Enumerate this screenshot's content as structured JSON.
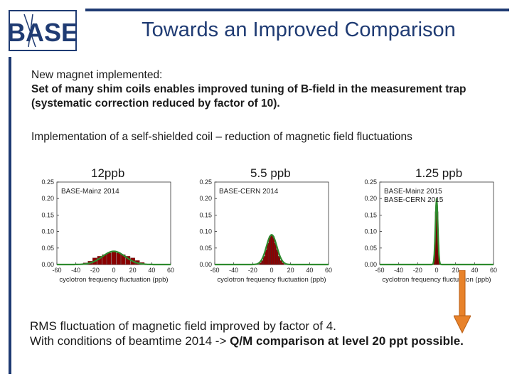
{
  "logo": {
    "text": "BASE"
  },
  "title": "Towards an Improved Comparison",
  "intro": {
    "line1": "New magnet implemented:",
    "line2": "Set of many shim coils enables improved tuning of B-field in the measurement trap (systematic correction reduced by factor of 10)."
  },
  "shielded": "Implementation of a self-shielded coil – reduction of magnetic field fluctuations",
  "ppb_labels": [
    "12ppb",
    "5.5 ppb",
    "1.25 ppb"
  ],
  "chart_data": [
    {
      "type": "bar",
      "legend": [
        "BASE-Mainz 2014"
      ],
      "xlabel": "cyclotron frequency fluctuation (ppb)",
      "xlim": [
        -60,
        60
      ],
      "ylim": [
        0,
        0.25
      ],
      "xticks": [
        "-60",
        "-40",
        "-20",
        "0",
        "20",
        "40",
        "60"
      ],
      "yticks": [
        "0.00",
        "0.05",
        "0.10",
        "0.15",
        "0.20",
        "0.25"
      ],
      "sigma": 12,
      "x": [
        -30,
        -25,
        -20,
        -15,
        -10,
        -5,
        0,
        5,
        10,
        15,
        20,
        25,
        30
      ],
      "values": [
        0.005,
        0.01,
        0.02,
        0.025,
        0.03,
        0.035,
        0.04,
        0.035,
        0.03,
        0.025,
        0.02,
        0.012,
        0.006
      ]
    },
    {
      "type": "bar",
      "legend": [
        "BASE-CERN 2014"
      ],
      "xlabel": "cyclotron frequency fluctuation (ppb)",
      "xlim": [
        -60,
        60
      ],
      "ylim": [
        0,
        0.25
      ],
      "xticks": [
        "-60",
        "-40",
        "-20",
        "0",
        "20",
        "40",
        "60"
      ],
      "yticks": [
        "0.00",
        "0.05",
        "0.10",
        "0.15",
        "0.20",
        "0.25"
      ],
      "sigma": 5.5,
      "x": [
        -12,
        -10,
        -8,
        -6,
        -4,
        -2,
        0,
        2,
        4,
        6,
        8,
        10,
        12
      ],
      "values": [
        0.005,
        0.012,
        0.025,
        0.045,
        0.065,
        0.085,
        0.09,
        0.085,
        0.065,
        0.045,
        0.025,
        0.012,
        0.005
      ]
    },
    {
      "type": "bar",
      "legend": [
        "BASE-Mainz 2015",
        "BASE-CERN 2015"
      ],
      "xlabel": "cyclotron frequency fluctuation (ppb)",
      "xlim": [
        -60,
        60
      ],
      "ylim": [
        0,
        0.25
      ],
      "xticks": [
        "-60",
        "-40",
        "-20",
        "0",
        "20",
        "40",
        "60"
      ],
      "yticks": [
        "0.00",
        "0.05",
        "0.10",
        "0.15",
        "0.20",
        "0.25"
      ],
      "sigma": 1.25,
      "x": [
        -3,
        -2,
        -1,
        0,
        1,
        2,
        3
      ],
      "values": [
        0.01,
        0.06,
        0.16,
        0.2,
        0.16,
        0.06,
        0.01
      ]
    }
  ],
  "bottom": {
    "line1": "RMS fluctuation of magnetic field improved by factor of 4.",
    "line2_plain": "With conditions of beamtime 2014 -> ",
    "line2_bold": "Q/M comparison at level 20 ppt possible."
  },
  "colors": {
    "accent": "#1f3b73",
    "bar": "#8b0000",
    "fit": "#2e8b2e",
    "arrow": "#e8822a"
  }
}
